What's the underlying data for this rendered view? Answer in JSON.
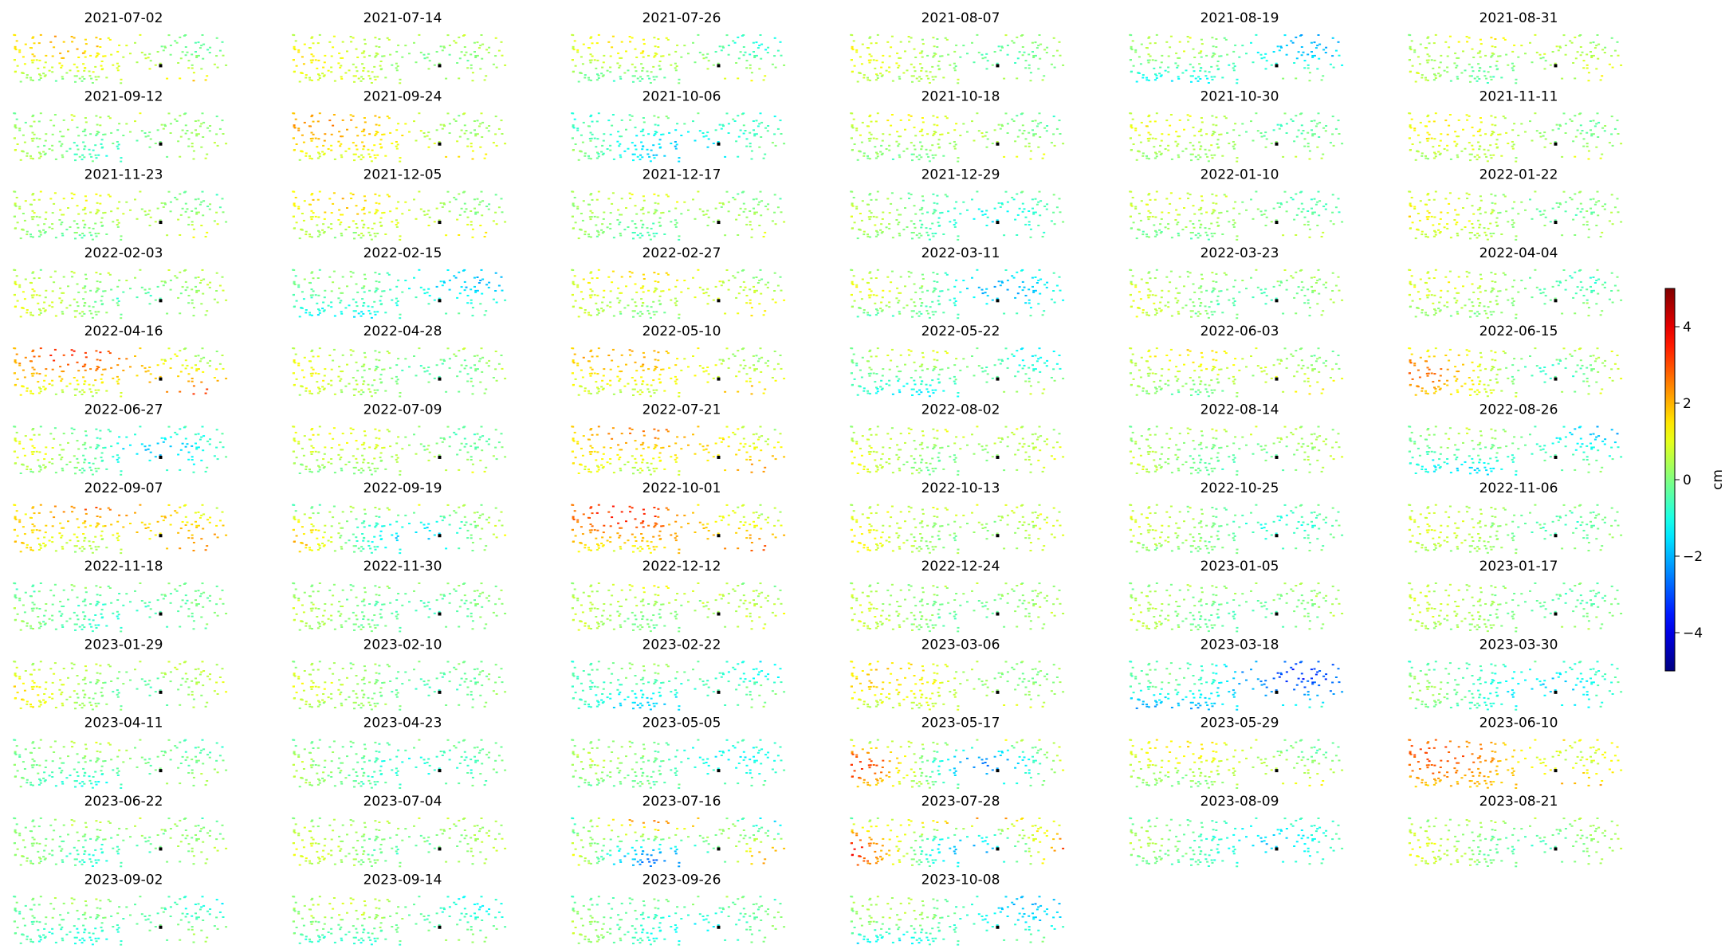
{
  "chart_data": {
    "type": "heatmap",
    "description_of_marks": "Grid of scattered point displacement maps, one per acquisition date",
    "panel_titles": [
      "2021-07-02",
      "2021-07-14",
      "2021-07-26",
      "2021-08-07",
      "2021-08-19",
      "2021-08-31",
      "2021-09-12",
      "2021-09-24",
      "2021-10-06",
      "2021-10-18",
      "2021-10-30",
      "2021-11-11",
      "2021-11-23",
      "2021-12-05",
      "2021-12-17",
      "2021-12-29",
      "2022-01-10",
      "2022-01-22",
      "2022-02-03",
      "2022-02-15",
      "2022-02-27",
      "2022-03-11",
      "2022-03-23",
      "2022-04-04",
      "2022-04-16",
      "2022-04-28",
      "2022-05-10",
      "2022-05-22",
      "2022-06-03",
      "2022-06-15",
      "2022-06-27",
      "2022-07-09",
      "2022-07-21",
      "2022-08-02",
      "2022-08-14",
      "2022-08-26",
      "2022-09-07",
      "2022-09-19",
      "2022-10-01",
      "2022-10-13",
      "2022-10-25",
      "2022-11-06",
      "2022-11-18",
      "2022-11-30",
      "2022-12-12",
      "2022-12-24",
      "2023-01-05",
      "2023-01-17",
      "2023-01-29",
      "2023-02-10",
      "2023-02-22",
      "2023-03-06",
      "2023-03-18",
      "2023-03-30",
      "2023-04-11",
      "2023-04-23",
      "2023-05-05",
      "2023-05-17",
      "2023-05-29",
      "2023-06-10",
      "2023-06-22",
      "2023-07-04",
      "2023-07-16",
      "2023-07-28",
      "2023-08-09",
      "2023-08-21",
      "2023-09-02",
      "2023-09-14",
      "2023-09-26",
      "2023-10-08"
    ],
    "panel_mean_displacement_cm": [
      0.8,
      0.6,
      0.3,
      0.4,
      -0.6,
      0.5,
      0.2,
      1.2,
      -0.6,
      0.4,
      0.3,
      0.6,
      0.4,
      0.8,
      0.3,
      -0.2,
      0.2,
      0.5,
      0.4,
      -0.8,
      0.8,
      -0.4,
      0.3,
      0.2,
      1.8,
      0.4,
      1.2,
      -0.3,
      0.6,
      1.0,
      -0.3,
      0.4,
      1.5,
      0.6,
      0.3,
      -0.6,
      1.6,
      0.2,
      2.0,
      0.7,
      0.0,
      0.3,
      -0.2,
      0.1,
      0.5,
      0.3,
      0.2,
      0.2,
      0.6,
      0.2,
      -0.6,
      0.8,
      -1.6,
      -0.6,
      -0.1,
      -0.2,
      -0.3,
      0.5,
      0.6,
      1.9,
      0.1,
      0.4,
      0.2,
      1.0,
      -0.5,
      0.3,
      -0.3,
      -0.2,
      -0.2,
      -0.6
    ],
    "panel_variability_cm": [
      1.2,
      0.8,
      1.2,
      0.8,
      1.4,
      0.9,
      0.9,
      1.1,
      1.2,
      0.8,
      0.8,
      0.8,
      0.8,
      0.9,
      0.8,
      1.0,
      0.8,
      0.8,
      0.8,
      1.0,
      0.9,
      1.6,
      0.9,
      0.8,
      1.6,
      0.9,
      1.0,
      1.3,
      0.9,
      1.8,
      1.5,
      0.8,
      1.1,
      0.8,
      0.8,
      1.2,
      1.2,
      2.0,
      1.4,
      0.8,
      0.9,
      0.8,
      0.7,
      0.7,
      0.7,
      0.7,
      0.7,
      0.7,
      1.1,
      0.8,
      1.0,
      1.0,
      1.6,
      1.1,
      0.8,
      0.8,
      0.9,
      3.0,
      0.9,
      1.2,
      0.9,
      0.8,
      2.8,
      3.2,
      1.1,
      0.9,
      0.8,
      1.0,
      1.1,
      1.3
    ],
    "colorbar": {
      "label": "cm",
      "colormap": "jet",
      "vmin": -5,
      "vmax": 5,
      "ticks": [
        -4,
        -2,
        0,
        2,
        4
      ],
      "tick_labels": [
        "−4",
        "−2",
        "0",
        "2",
        "4"
      ],
      "placement": "right"
    },
    "grid_columns": 6,
    "grid_rows": 12
  }
}
